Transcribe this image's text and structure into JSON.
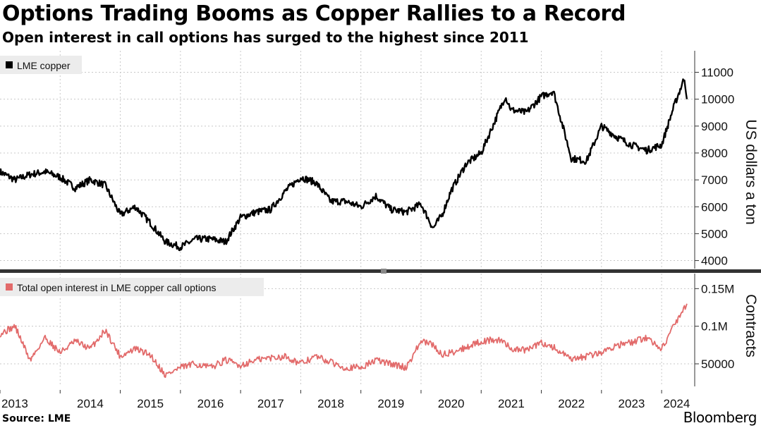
{
  "header": {
    "title": "Options Trading Booms as Copper Rallies to a Record",
    "subtitle": "Open interest in call options has surged to the highest since 2011"
  },
  "footer": {
    "source": "Source: LME",
    "brand": "Bloomberg"
  },
  "colors": {
    "copper_line": "#000000",
    "options_line": "#e26a6a",
    "grid": "#c8c8c8",
    "divider": "#333333"
  },
  "chart_data": [
    {
      "type": "line",
      "title": "LME copper",
      "legend": "LME copper",
      "ylabel": "US dollars a ton",
      "ylim": [
        3700,
        11800
      ],
      "yticks": [
        4000,
        5000,
        6000,
        7000,
        8000,
        9000,
        10000,
        11000
      ],
      "ytick_labels": [
        "4000",
        "5000",
        "6000",
        "7000",
        "8000",
        "9000",
        "10000",
        "11000"
      ],
      "x": [
        2013.0,
        2013.25,
        2013.5,
        2013.75,
        2014.0,
        2014.25,
        2014.5,
        2014.75,
        2015.0,
        2015.25,
        2015.5,
        2015.75,
        2016.0,
        2016.25,
        2016.5,
        2016.75,
        2017.0,
        2017.25,
        2017.5,
        2017.75,
        2018.0,
        2018.25,
        2018.5,
        2018.75,
        2019.0,
        2019.25,
        2019.5,
        2019.75,
        2020.0,
        2020.2,
        2020.35,
        2020.5,
        2020.75,
        2021.0,
        2021.25,
        2021.4,
        2021.5,
        2021.75,
        2022.0,
        2022.2,
        2022.5,
        2022.75,
        2023.0,
        2023.25,
        2023.5,
        2023.75,
        2024.0,
        2024.2,
        2024.38,
        2024.42
      ],
      "values": [
        7300,
        7000,
        7200,
        7300,
        7100,
        6700,
        7000,
        6800,
        5700,
        6000,
        5400,
        4700,
        4500,
        4800,
        4800,
        4700,
        5600,
        5800,
        5900,
        6600,
        7100,
        6900,
        6200,
        6200,
        6000,
        6400,
        5900,
        5800,
        6100,
        5200,
        5700,
        6600,
        7600,
        8000,
        9300,
        10100,
        9600,
        9500,
        10100,
        10300,
        7800,
        7700,
        9000,
        8600,
        8300,
        8100,
        8300,
        9700,
        10800,
        10000
      ]
    },
    {
      "type": "line",
      "title": "Total open interest in LME copper call options",
      "legend": "Total open interest in LME copper call options",
      "ylabel": "Contracts",
      "ylim": [
        20000,
        170000
      ],
      "yticks": [
        50000,
        100000,
        150000
      ],
      "ytick_labels": [
        "50000",
        "0.1M",
        "0.15M"
      ],
      "x": [
        2013.0,
        2013.25,
        2013.5,
        2013.75,
        2014.0,
        2014.25,
        2014.5,
        2014.75,
        2015.0,
        2015.25,
        2015.5,
        2015.75,
        2016.0,
        2016.25,
        2016.5,
        2016.75,
        2017.0,
        2017.25,
        2017.5,
        2017.75,
        2018.0,
        2018.25,
        2018.5,
        2018.75,
        2019.0,
        2019.25,
        2019.5,
        2019.75,
        2020.0,
        2020.2,
        2020.35,
        2020.5,
        2020.75,
        2021.0,
        2021.25,
        2021.4,
        2021.5,
        2021.75,
        2022.0,
        2022.2,
        2022.5,
        2022.75,
        2023.0,
        2023.25,
        2023.5,
        2023.75,
        2024.0,
        2024.2,
        2024.38,
        2024.42
      ],
      "values": [
        90000,
        100000,
        55000,
        85000,
        65000,
        80000,
        70000,
        95000,
        60000,
        70000,
        62000,
        35000,
        45000,
        50000,
        45000,
        55000,
        48000,
        55000,
        58000,
        60000,
        50000,
        60000,
        52000,
        45000,
        45000,
        55000,
        50000,
        45000,
        80000,
        75000,
        62000,
        65000,
        72000,
        80000,
        82000,
        78000,
        70000,
        68000,
        78000,
        72000,
        55000,
        60000,
        65000,
        75000,
        78000,
        85000,
        70000,
        100000,
        125000,
        130000
      ]
    }
  ],
  "x_axis": {
    "tick_labels": [
      "2013",
      "2014",
      "2015",
      "2016",
      "2017",
      "2018",
      "2019",
      "2020",
      "2021",
      "2022",
      "2023",
      "2024"
    ]
  }
}
